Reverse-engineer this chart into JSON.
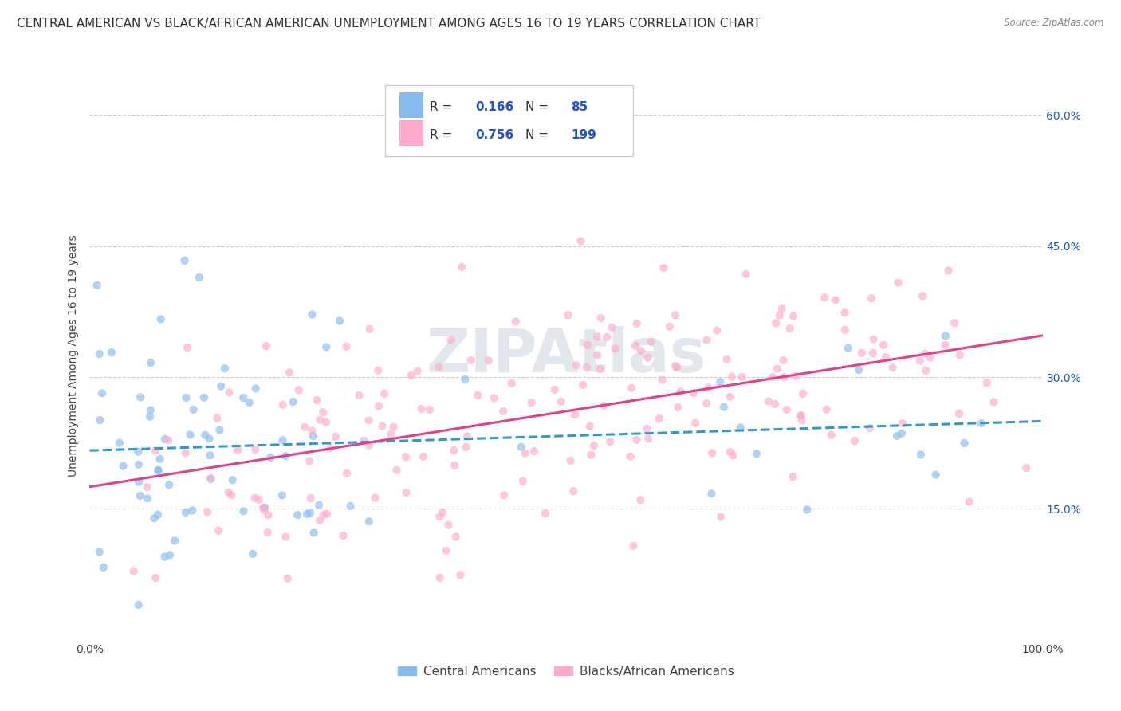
{
  "title": "CENTRAL AMERICAN VS BLACK/AFRICAN AMERICAN UNEMPLOYMENT AMONG AGES 16 TO 19 YEARS CORRELATION CHART",
  "source": "Source: ZipAtlas.com",
  "ylabel": "Unemployment Among Ages 16 to 19 years",
  "xlim": [
    0.0,
    1.0
  ],
  "ylim": [
    0.0,
    0.65
  ],
  "x_tick_labels": [
    "0.0%",
    "100.0%"
  ],
  "y_tick_labels": [
    "15.0%",
    "30.0%",
    "45.0%",
    "60.0%"
  ],
  "y_tick_positions": [
    0.15,
    0.3,
    0.45,
    0.6
  ],
  "grid_color": "#cccccc",
  "background_color": "#ffffff",
  "watermark": "ZIPAtlas",
  "legend_R1": "0.166",
  "legend_N1": "85",
  "legend_R2": "0.756",
  "legend_N2": "199",
  "blue_color": "#88bbee",
  "pink_color": "#ffaacc",
  "blue_line_color": "#3399cc",
  "pink_line_color": "#dd4488",
  "title_fontsize": 11,
  "label_fontsize": 10,
  "tick_fontsize": 10,
  "scatter_alpha": 0.65,
  "scatter_size": 55,
  "blue_label": "Central Americans",
  "pink_label": "Blacks/African Americans"
}
